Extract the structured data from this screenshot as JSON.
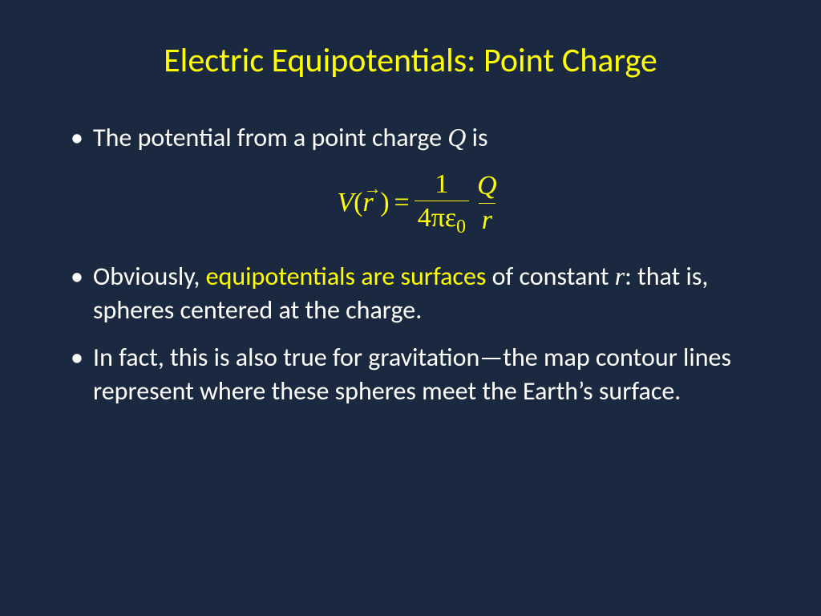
{
  "colors": {
    "background": "#1a2940",
    "title": "#ffff00",
    "body_text": "#ffffff",
    "highlight": "#ffff00",
    "equation": "#ffff00"
  },
  "fonts": {
    "title_size": 42,
    "body_size": 32,
    "equation_size": 34
  },
  "title": "Electric Equipotentials:  Point Charge",
  "bullets": {
    "b1_pre": "The potential from a point charge ",
    "b1_var": "Q",
    "b1_post": " is",
    "b2_pre": "Obviously, ",
    "b2_hl": "equipotentials are surfaces",
    "b2_mid": " of constant ",
    "b2_var": "r",
    "b2_post": ": that is, spheres centered at the charge.",
    "b3": "In fact, this is also true for gravitation—the map contour lines represent where these spheres meet the Earth’s surface."
  },
  "equation": {
    "lhs_V": "V",
    "lhs_r": "r",
    "eq": "=",
    "frac1_num": "1",
    "frac1_den_4pe": "4πε",
    "frac1_den_sub": "0",
    "frac2_num": "Q",
    "frac2_den": "r"
  }
}
